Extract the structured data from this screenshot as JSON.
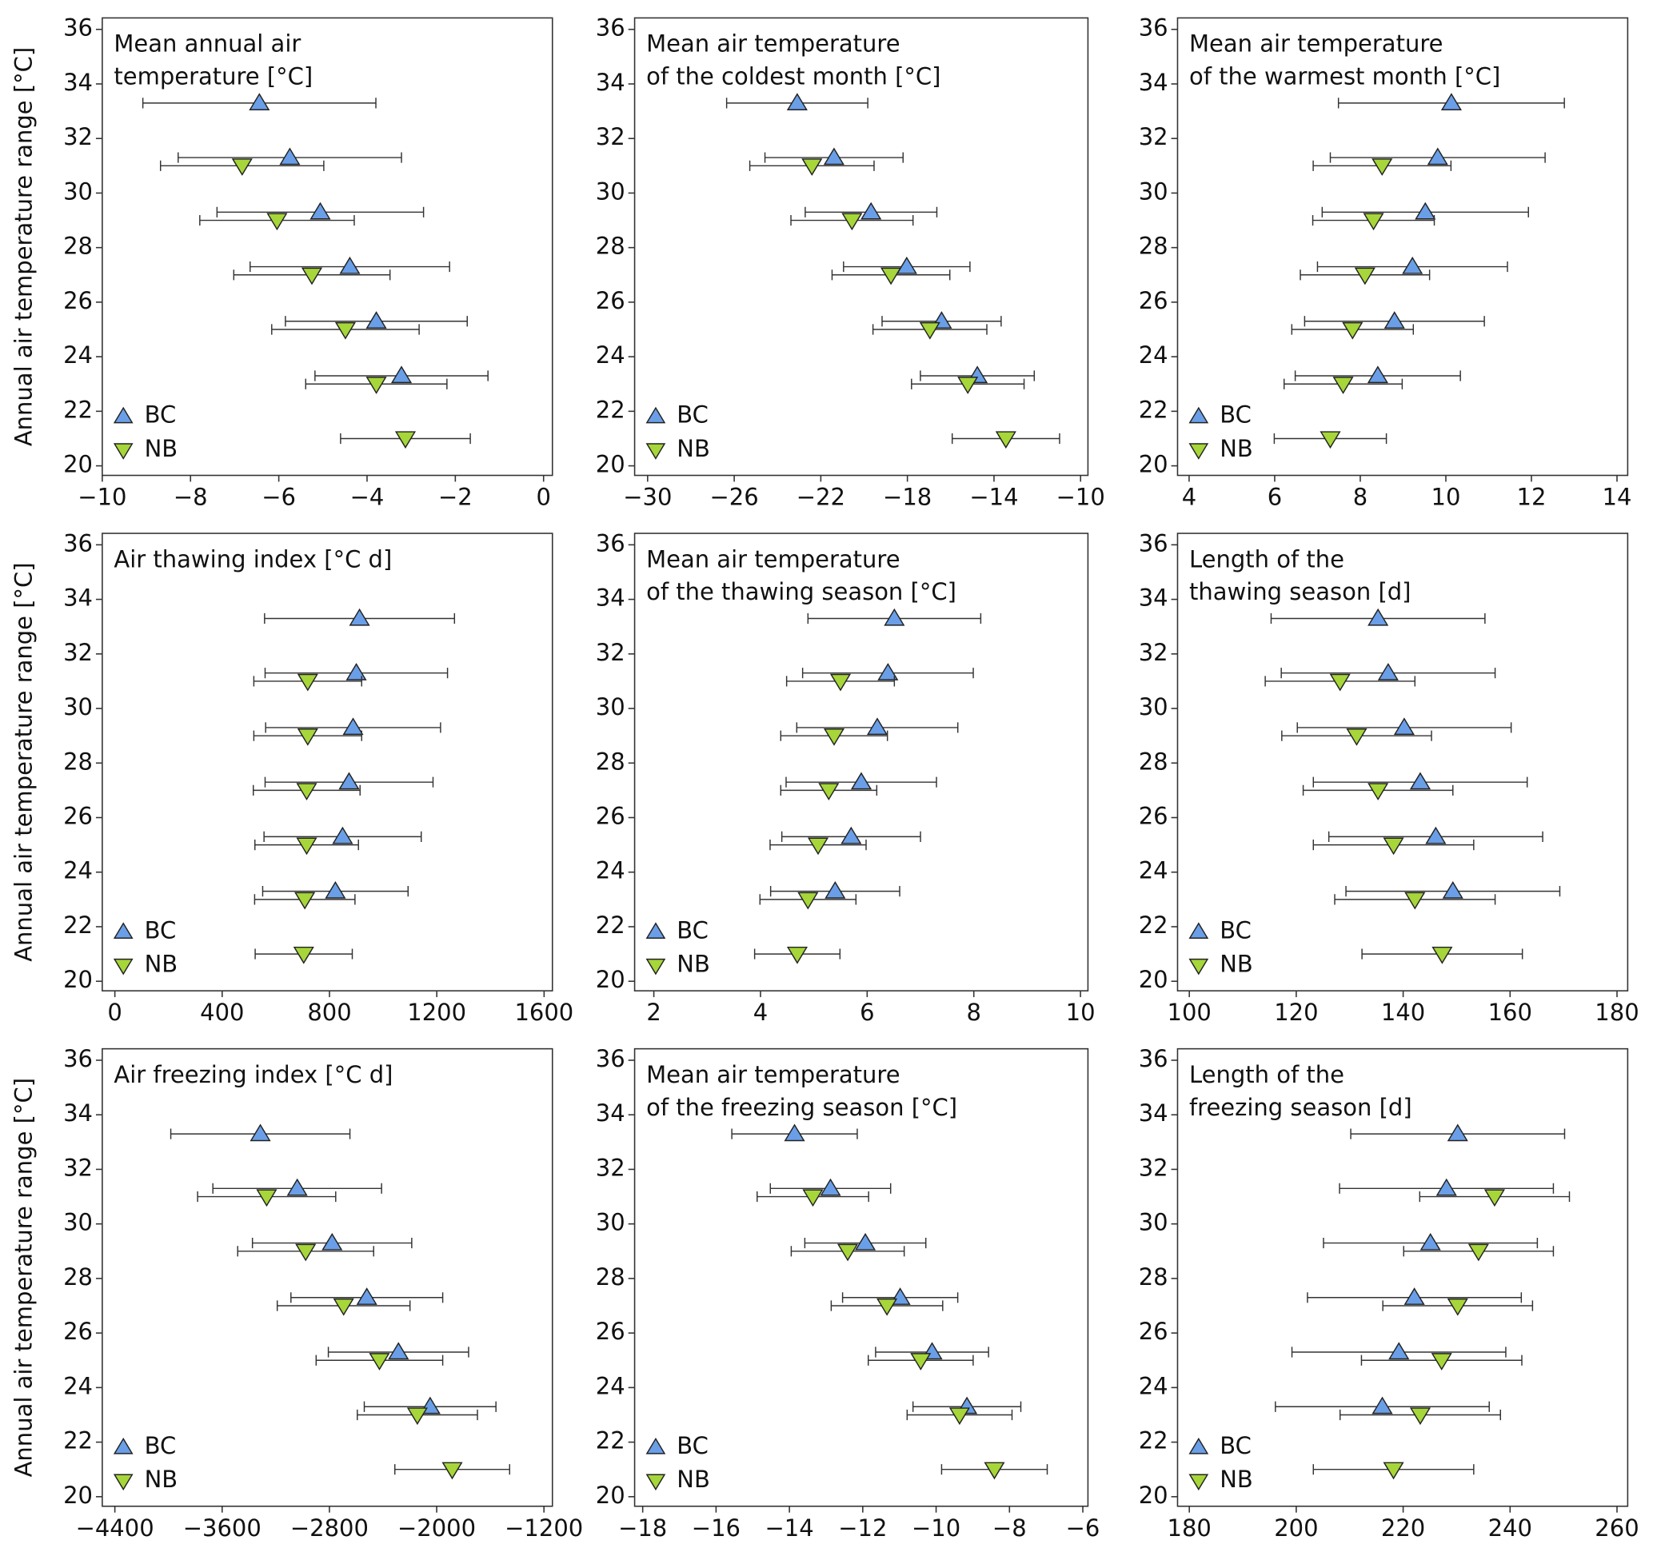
{
  "chart_data": [
    {
      "type": "scatter",
      "title": [
        "Mean annual air",
        "temperature [°C]"
      ],
      "ylabel": "Annual air temperature range [°C]",
      "xlim": [
        -10,
        0.2
      ],
      "xticks": [
        {
          "value": -10,
          "label": "−10"
        },
        {
          "value": -8,
          "label": "−8"
        },
        {
          "value": -6,
          "label": "−6"
        },
        {
          "value": -4,
          "label": "−4"
        },
        {
          "value": -2,
          "label": "−2"
        },
        0
      ],
      "ylim": [
        19.65,
        36.42
      ],
      "yticks": [
        20,
        22,
        24,
        26,
        28,
        30,
        32,
        34,
        36
      ],
      "legend": "lower left",
      "series": [
        {
          "name": "BC",
          "color": "#6a9fe8",
          "marker": "triangle-up",
          "x": [
            -6.44,
            -5.75,
            -5.06,
            -4.39,
            -3.79,
            -3.22
          ],
          "y": [
            33.3,
            31.3,
            29.3,
            27.3,
            25.3,
            23.3
          ],
          "xerr": [
            2.64,
            2.53,
            2.34,
            2.26,
            2.06,
            1.96
          ]
        },
        {
          "name": "NB",
          "color": "#a6d63a",
          "marker": "triangle-down",
          "x": [
            -6.83,
            -6.04,
            -5.25,
            -4.49,
            -3.79,
            -3.13
          ],
          "y": [
            31,
            29,
            27,
            25,
            23,
            21
          ],
          "xerr": [
            1.85,
            1.75,
            1.77,
            1.67,
            1.6,
            1.47
          ]
        }
      ]
    },
    {
      "type": "scatter",
      "title": [
        "Mean air temperature",
        "of the coldest month [°C]"
      ],
      "xlim": [
        -30.6,
        -9.66
      ],
      "xticks": [
        {
          "value": -30,
          "label": "−30"
        },
        {
          "value": -26,
          "label": "−26"
        },
        {
          "value": -22,
          "label": "−22"
        },
        {
          "value": -18,
          "label": "−18"
        },
        {
          "value": -14,
          "label": "−14"
        },
        {
          "value": -10,
          "label": "−10"
        }
      ],
      "ylim": [
        19.65,
        36.42
      ],
      "yticks": [
        20,
        22,
        24,
        26,
        28,
        30,
        32,
        34,
        36
      ],
      "legend": "lower left",
      "series": [
        {
          "name": "BC",
          "color": "#6a9fe8",
          "marker": "triangle-up",
          "x": [
            -23.09,
            -21.39,
            -19.68,
            -18.03,
            -16.42,
            -14.77
          ],
          "y": [
            33.3,
            31.3,
            29.3,
            27.3,
            25.3,
            23.3
          ],
          "xerr": [
            3.26,
            3.19,
            3.04,
            2.92,
            2.75,
            2.63
          ]
        },
        {
          "name": "NB",
          "color": "#a6d63a",
          "marker": "triangle-down",
          "x": [
            -22.41,
            -20.56,
            -18.76,
            -16.96,
            -15.21,
            -13.45
          ],
          "y": [
            31,
            29,
            27,
            25,
            23,
            21
          ],
          "xerr": [
            2.87,
            2.82,
            2.72,
            2.63,
            2.6,
            2.48
          ]
        }
      ]
    },
    {
      "type": "scatter",
      "title": [
        "Mean air temperature",
        "of the warmest month [°C]"
      ],
      "xlim": [
        3.73,
        14.25
      ],
      "xticks": [
        4,
        6,
        8,
        10,
        12,
        14
      ],
      "ylim": [
        19.65,
        36.42
      ],
      "yticks": [
        20,
        22,
        24,
        26,
        28,
        30,
        32,
        34,
        36
      ],
      "legend": "lower left",
      "series": [
        {
          "name": "BC",
          "color": "#6a9fe8",
          "marker": "triangle-up",
          "x": [
            10.13,
            9.81,
            9.52,
            9.22,
            8.8,
            8.41
          ],
          "y": [
            33.3,
            31.3,
            29.3,
            27.3,
            25.3,
            23.3
          ],
          "xerr": [
            2.64,
            2.51,
            2.41,
            2.22,
            2.1,
            1.93
          ]
        },
        {
          "name": "NB",
          "color": "#a6d63a",
          "marker": "triangle-down",
          "x": [
            8.51,
            8.31,
            8.11,
            7.82,
            7.6,
            7.3
          ],
          "y": [
            31,
            29,
            27,
            25,
            23,
            21
          ],
          "xerr": [
            1.61,
            1.42,
            1.51,
            1.42,
            1.38,
            1.31
          ]
        }
      ]
    },
    {
      "type": "scatter",
      "title": [
        "Air thawing index [°C d]"
      ],
      "ylabel": "Annual air temperature range [°C]",
      "xlim": [
        -47,
        1631
      ],
      "xticks": [
        0,
        400,
        800,
        1200,
        1600
      ],
      "ylim": [
        19.65,
        36.42
      ],
      "yticks": [
        20,
        22,
        24,
        26,
        28,
        30,
        32,
        34,
        36
      ],
      "legend": "lower left",
      "series": [
        {
          "name": "BC",
          "color": "#6a9fe8",
          "marker": "triangle-up",
          "x": [
            912,
            900,
            888,
            873,
            849,
            822
          ],
          "y": [
            33.3,
            31.3,
            29.3,
            27.3,
            25.3,
            23.3
          ],
          "xerr": [
            354,
            340,
            326,
            313,
            293,
            271
          ]
        },
        {
          "name": "NB",
          "color": "#a6d63a",
          "marker": "triangle-down",
          "x": [
            719,
            719,
            715,
            715,
            708,
            704
          ],
          "y": [
            31,
            29,
            27,
            25,
            23,
            21
          ],
          "xerr": [
            201,
            201,
            199,
            193,
            187,
            181
          ]
        }
      ]
    },
    {
      "type": "scatter",
      "title": [
        "Mean air temperature",
        "of the thawing season [°C]"
      ],
      "xlim": [
        1.64,
        10.14
      ],
      "xticks": [
        2,
        4,
        6,
        8,
        10
      ],
      "ylim": [
        19.65,
        36.42
      ],
      "yticks": [
        20,
        22,
        24,
        26,
        28,
        30,
        32,
        34,
        36
      ],
      "legend": "lower left",
      "series": [
        {
          "name": "BC",
          "color": "#6a9fe8",
          "marker": "triangle-up",
          "x": [
            6.51,
            6.39,
            6.19,
            5.89,
            5.7,
            5.4
          ],
          "y": [
            33.3,
            31.3,
            29.3,
            27.3,
            25.3,
            23.3
          ],
          "xerr": [
            1.62,
            1.6,
            1.51,
            1.41,
            1.3,
            1.21
          ]
        },
        {
          "name": "NB",
          "color": "#a6d63a",
          "marker": "triangle-down",
          "x": [
            5.5,
            5.38,
            5.28,
            5.08,
            4.89,
            4.69
          ],
          "y": [
            31,
            29,
            27,
            25,
            23,
            21
          ],
          "xerr": [
            1.01,
            1.0,
            0.9,
            0.9,
            0.9,
            0.8
          ]
        }
      ]
    },
    {
      "type": "scatter",
      "title": [
        "Length of the",
        "thawing season [d]"
      ],
      "xlim": [
        97.8,
        182
      ],
      "xticks": [
        100,
        120,
        140,
        160,
        180
      ],
      "ylim": [
        19.65,
        36.42
      ],
      "yticks": [
        20,
        22,
        24,
        26,
        28,
        30,
        32,
        34,
        36
      ],
      "legend": "lower left",
      "series": [
        {
          "name": "BC",
          "color": "#6a9fe8",
          "marker": "triangle-up",
          "x": [
            135.3,
            137.2,
            140.2,
            143.2,
            146.1,
            149.3
          ],
          "y": [
            33.3,
            31.3,
            29.3,
            27.3,
            25.3,
            23.3
          ],
          "xerr": [
            20,
            20,
            20,
            20,
            20,
            20
          ]
        },
        {
          "name": "NB",
          "color": "#a6d63a",
          "marker": "triangle-down",
          "x": [
            128.2,
            131.3,
            135.3,
            138.2,
            142.2,
            147.3
          ],
          "y": [
            31,
            29,
            27,
            25,
            23,
            21
          ],
          "xerr": [
            14,
            14,
            14,
            15,
            15,
            15
          ]
        }
      ]
    },
    {
      "type": "scatter",
      "title": [
        "Air freezing index [°C d]"
      ],
      "ylabel": "Annual air temperature range [°C]",
      "xlim": [
        -4494,
        -1137
      ],
      "xticks": [
        {
          "value": -4400,
          "label": "−4400"
        },
        {
          "value": -3600,
          "label": "−3600"
        },
        {
          "value": -2800,
          "label": "−2800"
        },
        {
          "value": -2000,
          "label": "−2000"
        },
        {
          "value": -1200,
          "label": "−1200"
        }
      ],
      "ylim": [
        19.65,
        36.42
      ],
      "yticks": [
        20,
        22,
        24,
        26,
        28,
        30,
        32,
        34,
        36
      ],
      "legend": "lower left",
      "series": [
        {
          "name": "BC",
          "color": "#6a9fe8",
          "marker": "triangle-up",
          "x": [
            -3315,
            -3040,
            -2780,
            -2521,
            -2285,
            -2049
          ],
          "y": [
            33.3,
            31.3,
            29.3,
            27.3,
            25.3,
            23.3
          ],
          "xerr": [
            668,
            629,
            594,
            566,
            523,
            491
          ]
        },
        {
          "name": "NB",
          "color": "#a6d63a",
          "marker": "triangle-down",
          "x": [
            -3268,
            -2977,
            -2694,
            -2427,
            -2144,
            -1884
          ],
          "y": [
            31,
            29,
            27,
            25,
            23,
            21
          ],
          "xerr": [
            515,
            507,
            495,
            472,
            448,
            428
          ]
        }
      ]
    },
    {
      "type": "scatter",
      "title": [
        "Mean air temperature",
        "of the freezing season [°C]"
      ],
      "xlim": [
        -18.22,
        -5.86
      ],
      "xticks": [
        {
          "value": -18,
          "label": "−18"
        },
        {
          "value": -16,
          "label": "−16"
        },
        {
          "value": -14,
          "label": "−14"
        },
        {
          "value": -12,
          "label": "−12"
        },
        {
          "value": -10,
          "label": "−10"
        },
        {
          "value": -8,
          "label": "−8"
        },
        {
          "value": -6,
          "label": "−6"
        }
      ],
      "ylim": [
        19.65,
        36.42
      ],
      "yticks": [
        20,
        22,
        24,
        26,
        28,
        30,
        32,
        34,
        36
      ],
      "legend": "lower left",
      "series": [
        {
          "name": "BC",
          "color": "#6a9fe8",
          "marker": "triangle-up",
          "x": [
            -13.86,
            -12.88,
            -11.93,
            -10.98,
            -10.11,
            -9.16
          ],
          "y": [
            33.3,
            31.3,
            29.3,
            27.3,
            25.3,
            23.3
          ],
          "xerr": [
            1.71,
            1.64,
            1.65,
            1.57,
            1.54,
            1.47
          ]
        },
        {
          "name": "NB",
          "color": "#a6d63a",
          "marker": "triangle-down",
          "x": [
            -13.36,
            -12.41,
            -11.34,
            -10.42,
            -9.36,
            -8.41
          ],
          "y": [
            31,
            29,
            27,
            25,
            23,
            21
          ],
          "xerr": [
            1.52,
            1.54,
            1.52,
            1.43,
            1.43,
            1.44
          ]
        }
      ]
    },
    {
      "type": "scatter",
      "title": [
        "Length of the",
        "freezing season [d]"
      ],
      "xlim": [
        177.8,
        262
      ],
      "xticks": [
        180,
        200,
        220,
        240,
        260
      ],
      "ylim": [
        19.65,
        36.42
      ],
      "yticks": [
        20,
        22,
        24,
        26,
        28,
        30,
        32,
        34,
        36
      ],
      "legend": "lower left",
      "series": [
        {
          "name": "BC",
          "color": "#6a9fe8",
          "marker": "triangle-up",
          "x": [
            230.2,
            228.1,
            225.1,
            222.1,
            219.2,
            216.1
          ],
          "y": [
            33.3,
            31.3,
            29.3,
            27.3,
            25.3,
            23.3
          ],
          "xerr": [
            20,
            20,
            20,
            20,
            20,
            20
          ]
        },
        {
          "name": "NB",
          "color": "#a6d63a",
          "marker": "triangle-down",
          "x": [
            237.1,
            234.1,
            230.2,
            227.2,
            223.2,
            218.2
          ],
          "y": [
            31,
            29,
            27,
            25,
            23,
            21
          ],
          "xerr": [
            14,
            14,
            14,
            15,
            15,
            15
          ]
        }
      ]
    }
  ]
}
